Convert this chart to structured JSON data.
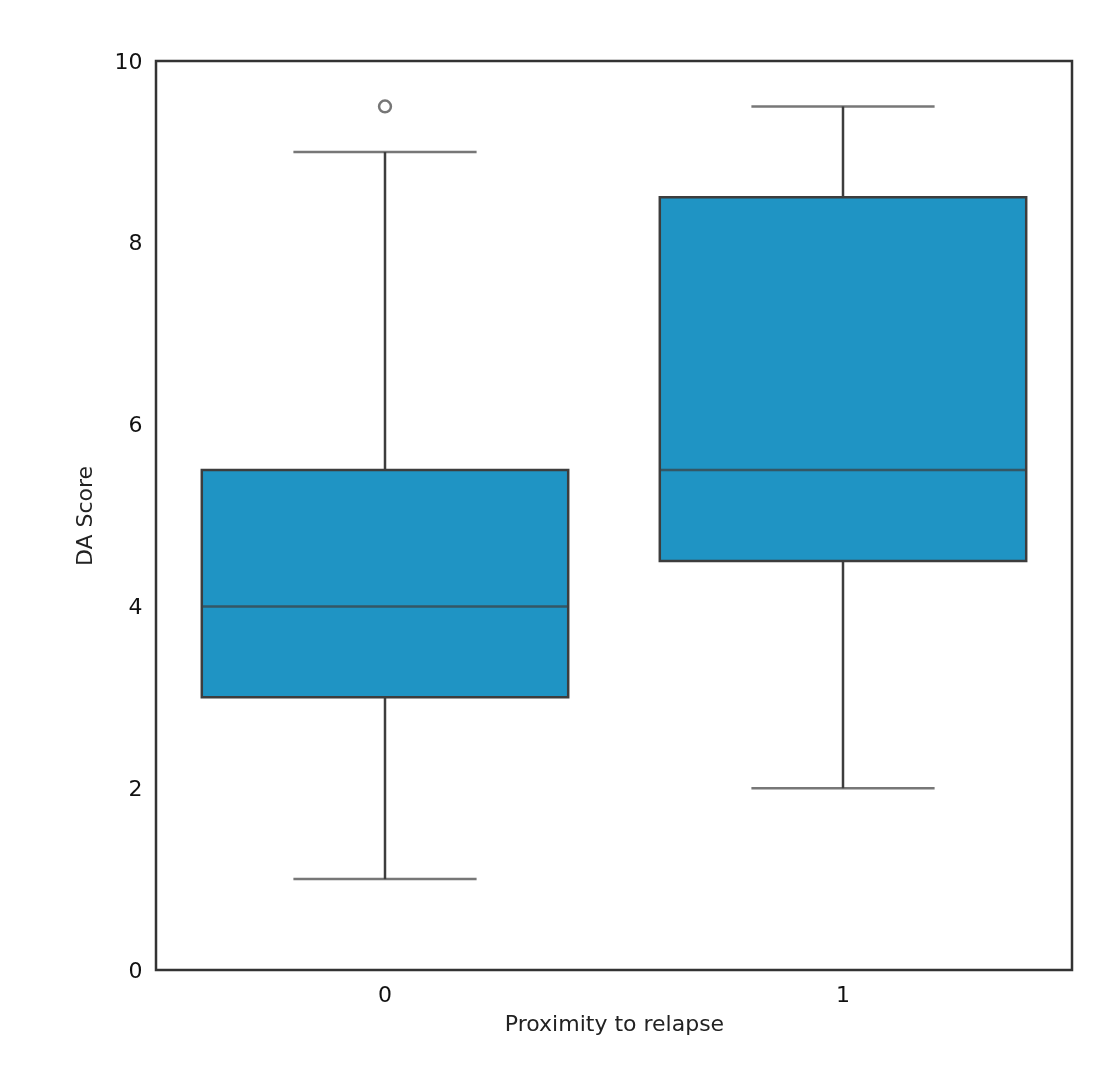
{
  "chart_data": {
    "type": "box",
    "xlabel": "Proximity to relapse",
    "ylabel": "DA Score",
    "categories": [
      "0",
      "1"
    ],
    "color": "#1f94c4",
    "boxes": [
      {
        "low": 1.0,
        "q1": 3.0,
        "median": 4.0,
        "q3": 5.5,
        "high": 9.0,
        "outliers": [
          9.5
        ]
      },
      {
        "low": 2.0,
        "q1": 4.5,
        "median": 5.5,
        "q3": 8.5,
        "high": 9.5
      }
    ],
    "ylim": [
      0,
      10
    ],
    "yticks": [
      0,
      2,
      4,
      6,
      8,
      10
    ],
    "grid": false
  }
}
